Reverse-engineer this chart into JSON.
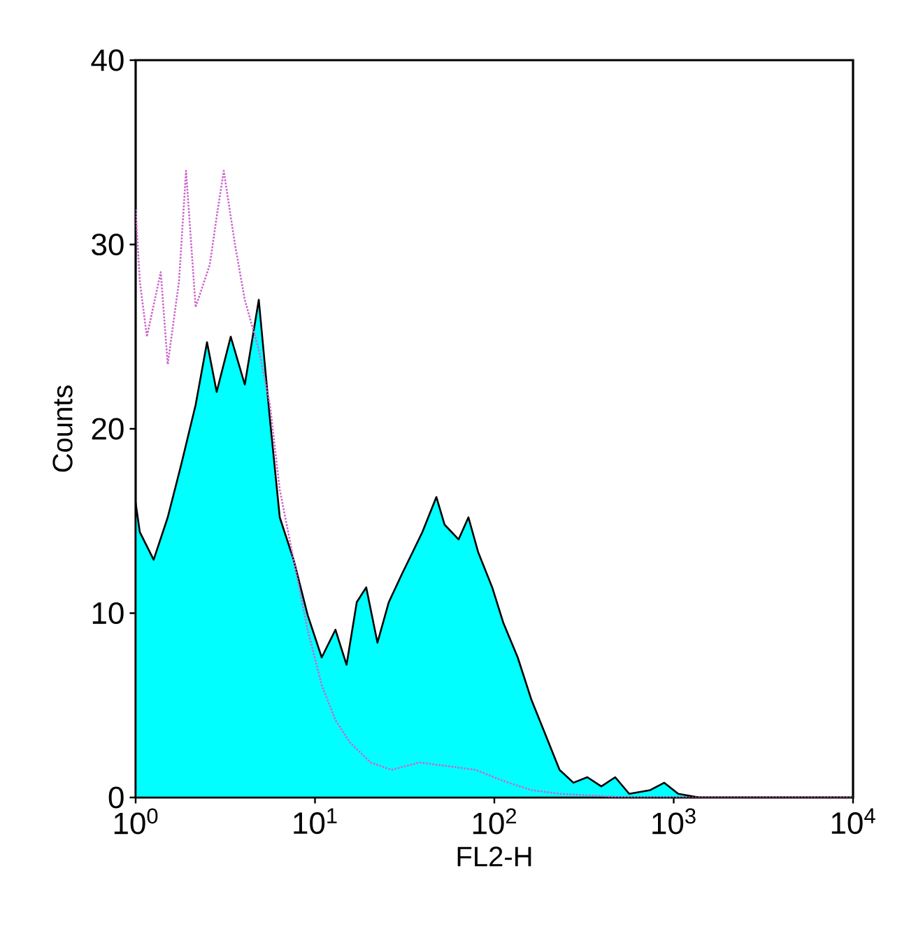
{
  "chart_data": {
    "type": "area",
    "xlabel": "FL2-H",
    "ylabel": "Counts",
    "log": "x",
    "xlim": [
      1,
      10000
    ],
    "ylim": [
      0,
      40
    ],
    "xticks": [
      {
        "value": 1,
        "label": "10$^{0}$"
      },
      {
        "value": 10,
        "label": "10$^{1}$"
      },
      {
        "value": 100,
        "label": "10$^{2}$"
      },
      {
        "value": 1000,
        "label": "10$^{3}$"
      },
      {
        "value": 10000,
        "label": "10$^{4}$"
      }
    ],
    "yticks": [
      0,
      10,
      20,
      30,
      40
    ],
    "grid": false,
    "series": [
      {
        "color": "#00ffff",
        "x": [
          1,
          1.055,
          1.26,
          1.51,
          1.81,
          2.16,
          2.5,
          2.83,
          3.39,
          4.06,
          4.86,
          5.61,
          6.36,
          7.6,
          9.1,
          10.9,
          13.0,
          15.0,
          17.1,
          19.3,
          22.3,
          25.8,
          30.8,
          35.0,
          39.7,
          47.5,
          52.8,
          63.2,
          71.7,
          81.3,
          97.3,
          112,
          135,
          161,
          193,
          231,
          276,
          330,
          395,
          472,
          565,
          740,
          886,
          1060,
          1390,
          10000
        ],
        "values": [
          16,
          14.4,
          12.9,
          15.2,
          18.2,
          21.3,
          24.7,
          22,
          25,
          22.4,
          27,
          20.5,
          15.2,
          12.9,
          9.9,
          7.6,
          9.1,
          7.2,
          10.6,
          11.4,
          8.4,
          10.6,
          12.2,
          13.3,
          14.4,
          16.3,
          14.8,
          14,
          15.2,
          13.3,
          11.4,
          9.5,
          7.6,
          5.3,
          3.4,
          1.5,
          0.8,
          1.1,
          0.6,
          1.1,
          0.2,
          0.4,
          0.8,
          0.2,
          0,
          0
        ]
      },
      {
        "type": "line",
        "color": "#cc66cc",
        "line_style": "dotted",
        "x": [
          1,
          1.055,
          1.155,
          1.38,
          1.51,
          1.745,
          1.91,
          2.16,
          2.59,
          2.83,
          3.1,
          3.58,
          4.06,
          4.86,
          5.61,
          6.36,
          7.6,
          9.1,
          10.9,
          13.0,
          15.6,
          20.4,
          26.7,
          38.3,
          54.8,
          78.5,
          112,
          161,
          231,
          565,
          10000
        ],
        "values": [
          31.9,
          28,
          25,
          28.5,
          23.5,
          28,
          34,
          26.6,
          28.9,
          31.5,
          34,
          30,
          27,
          24.3,
          21.3,
          16.7,
          12.9,
          9.1,
          6.1,
          4.2,
          3,
          1.9,
          1.5,
          1.9,
          1.7,
          1.5,
          0.9,
          0.4,
          0.2,
          0,
          0
        ]
      }
    ]
  }
}
